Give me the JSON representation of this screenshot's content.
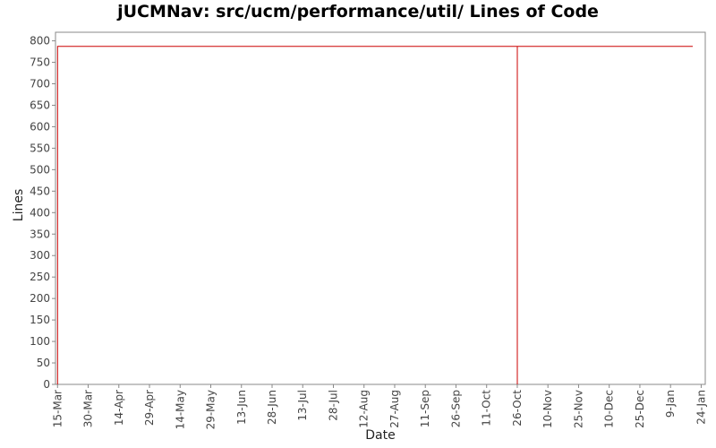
{
  "chart_data": {
    "type": "line",
    "title": "jUCMNav: src/ucm/performance/util/ Lines of Code",
    "xlabel": "Date",
    "ylabel": "Lines",
    "ylim": [
      0,
      820
    ],
    "yticks": [
      0,
      50,
      100,
      150,
      200,
      250,
      300,
      350,
      400,
      450,
      500,
      550,
      600,
      650,
      700,
      750,
      800
    ],
    "x_tick_labels": [
      "15-Mar",
      "30-Mar",
      "14-Apr",
      "29-Apr",
      "14-May",
      "29-May",
      "13-Jun",
      "28-Jun",
      "13-Jul",
      "28-Jul",
      "12-Aug",
      "27-Aug",
      "11-Sep",
      "26-Sep",
      "11-Oct",
      "26-Oct",
      "10-Nov",
      "25-Nov",
      "10-Dec",
      "25-Dec",
      "9-Jan",
      "24-Jan"
    ],
    "x_tick_step_days": 15,
    "xlim_days": [
      -1,
      317
    ],
    "series_color": "#cc0000",
    "grid": false,
    "series": [
      {
        "points": [
          {
            "day": 0,
            "value": 0
          },
          {
            "day": 0,
            "value": 787
          },
          {
            "day": 225,
            "value": 787
          },
          {
            "day": 225,
            "value": 0
          },
          {
            "day": 225,
            "value": 787
          },
          {
            "day": 321,
            "value": 787
          }
        ]
      }
    ]
  }
}
